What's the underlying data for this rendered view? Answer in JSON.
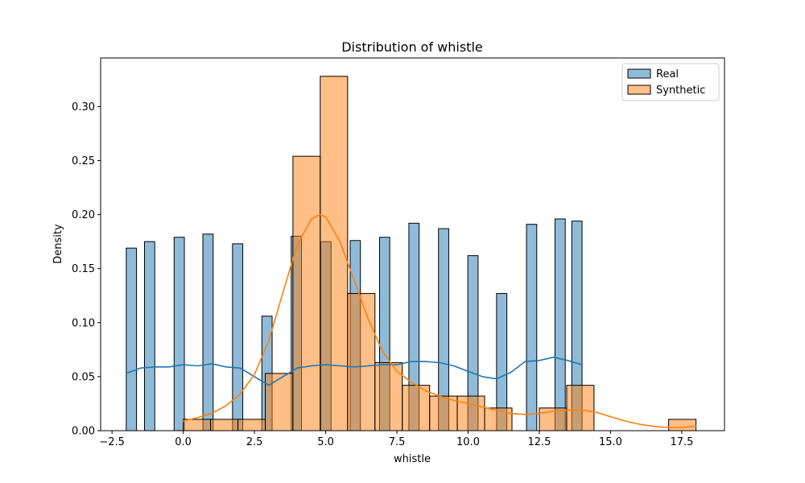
{
  "chart_data": {
    "type": "bar",
    "title": "Distribution of whistle",
    "xlabel": "whistle",
    "ylabel": "Density",
    "xlim": [
      -2.9,
      19.0
    ],
    "ylim": [
      0,
      0.345
    ],
    "xticks": [
      -2.5,
      0.0,
      2.5,
      5.0,
      7.5,
      10.0,
      12.5,
      15.0,
      17.5
    ],
    "xtick_labels": [
      "−2.5",
      "0.0",
      "2.5",
      "5.0",
      "7.5",
      "10.0",
      "12.5",
      "15.0",
      "17.5"
    ],
    "yticks": [
      0.0,
      0.05,
      0.1,
      0.15,
      0.2,
      0.25,
      0.3
    ],
    "ytick_labels": [
      "0.00",
      "0.05",
      "0.10",
      "0.15",
      "0.20",
      "0.25",
      "0.30"
    ],
    "grid": false,
    "legend_position": "top-right",
    "series": [
      {
        "name": "Real",
        "color": "#1f77b4",
        "fill_alpha": 0.5,
        "bins": [
          {
            "x0": -2.0,
            "x1": -1.64,
            "value": 0.169
          },
          {
            "x0": -1.36,
            "x1": -1.0,
            "value": 0.175
          },
          {
            "x0": -0.32,
            "x1": 0.04,
            "value": 0.179
          },
          {
            "x0": 0.69,
            "x1": 1.05,
            "value": 0.182
          },
          {
            "x0": 1.73,
            "x1": 2.09,
            "value": 0.173
          },
          {
            "x0": 2.76,
            "x1": 3.12,
            "value": 0.106
          },
          {
            "x0": 3.79,
            "x1": 4.15,
            "value": 0.18
          },
          {
            "x0": 4.83,
            "x1": 5.19,
            "value": 0.175
          },
          {
            "x0": 5.86,
            "x1": 6.22,
            "value": 0.176
          },
          {
            "x0": 6.89,
            "x1": 7.25,
            "value": 0.179
          },
          {
            "x0": 7.92,
            "x1": 8.28,
            "value": 0.192
          },
          {
            "x0": 8.96,
            "x1": 9.32,
            "value": 0.187
          },
          {
            "x0": 9.99,
            "x1": 10.35,
            "value": 0.162
          },
          {
            "x0": 11.0,
            "x1": 11.36,
            "value": 0.127
          },
          {
            "x0": 12.05,
            "x1": 12.41,
            "value": 0.191
          },
          {
            "x0": 13.05,
            "x1": 13.41,
            "value": 0.196
          },
          {
            "x0": 13.64,
            "x1": 14.0,
            "value": 0.194
          }
        ],
        "kde": {
          "x": [
            -2.0,
            -1.5,
            -1.0,
            -0.5,
            0.0,
            0.5,
            1.0,
            1.5,
            2.0,
            2.5,
            3.0,
            3.5,
            4.0,
            4.5,
            5.0,
            5.5,
            6.0,
            6.5,
            7.0,
            7.5,
            8.0,
            8.5,
            9.0,
            9.5,
            10.0,
            10.5,
            11.0,
            11.5,
            12.0,
            12.5,
            13.0,
            13.5,
            14.0
          ],
          "y": [
            0.053,
            0.058,
            0.059,
            0.059,
            0.061,
            0.06,
            0.062,
            0.059,
            0.058,
            0.05,
            0.042,
            0.05,
            0.058,
            0.06,
            0.061,
            0.06,
            0.059,
            0.06,
            0.061,
            0.061,
            0.064,
            0.064,
            0.063,
            0.06,
            0.055,
            0.05,
            0.048,
            0.054,
            0.064,
            0.065,
            0.068,
            0.065,
            0.061
          ]
        }
      },
      {
        "name": "Synthetic",
        "color": "#ff7f0e",
        "fill_alpha": 0.5,
        "bins": [
          {
            "x0": 0.0,
            "x1": 0.96,
            "value": 0.0105
          },
          {
            "x0": 0.96,
            "x1": 1.92,
            "value": 0.0105
          },
          {
            "x0": 1.92,
            "x1": 2.88,
            "value": 0.0105
          },
          {
            "x0": 2.88,
            "x1": 3.85,
            "value": 0.053
          },
          {
            "x0": 3.85,
            "x1": 4.81,
            "value": 0.254
          },
          {
            "x0": 4.81,
            "x1": 5.77,
            "value": 0.328
          },
          {
            "x0": 5.77,
            "x1": 6.73,
            "value": 0.127
          },
          {
            "x0": 6.73,
            "x1": 7.69,
            "value": 0.063
          },
          {
            "x0": 7.69,
            "x1": 8.65,
            "value": 0.042
          },
          {
            "x0": 8.65,
            "x1": 9.62,
            "value": 0.032
          },
          {
            "x0": 9.62,
            "x1": 10.58,
            "value": 0.032
          },
          {
            "x0": 10.58,
            "x1": 11.54,
            "value": 0.021
          },
          {
            "x0": 12.5,
            "x1": 13.46,
            "value": 0.021
          },
          {
            "x0": 13.46,
            "x1": 14.42,
            "value": 0.042
          },
          {
            "x0": 17.04,
            "x1": 18.0,
            "value": 0.0105
          }
        ],
        "kde": {
          "x": [
            0.0,
            0.5,
            1.0,
            1.5,
            2.0,
            2.5,
            3.0,
            3.5,
            4.0,
            4.5,
            4.8,
            5.0,
            5.5,
            6.0,
            6.5,
            7.0,
            7.5,
            8.0,
            8.5,
            9.0,
            9.5,
            10.0,
            10.5,
            11.0,
            11.5,
            12.0,
            12.5,
            13.0,
            13.5,
            14.0,
            14.5,
            15.0,
            15.5,
            16.0,
            16.5,
            17.0,
            17.5,
            18.0
          ],
          "y": [
            0.009,
            0.012,
            0.016,
            0.023,
            0.034,
            0.052,
            0.083,
            0.128,
            0.172,
            0.196,
            0.2,
            0.198,
            0.175,
            0.139,
            0.103,
            0.073,
            0.055,
            0.045,
            0.037,
            0.032,
            0.028,
            0.025,
            0.022,
            0.019,
            0.016,
            0.015,
            0.016,
            0.018,
            0.019,
            0.019,
            0.017,
            0.013,
            0.009,
            0.006,
            0.004,
            0.003,
            0.003,
            0.004
          ]
        }
      }
    ]
  }
}
